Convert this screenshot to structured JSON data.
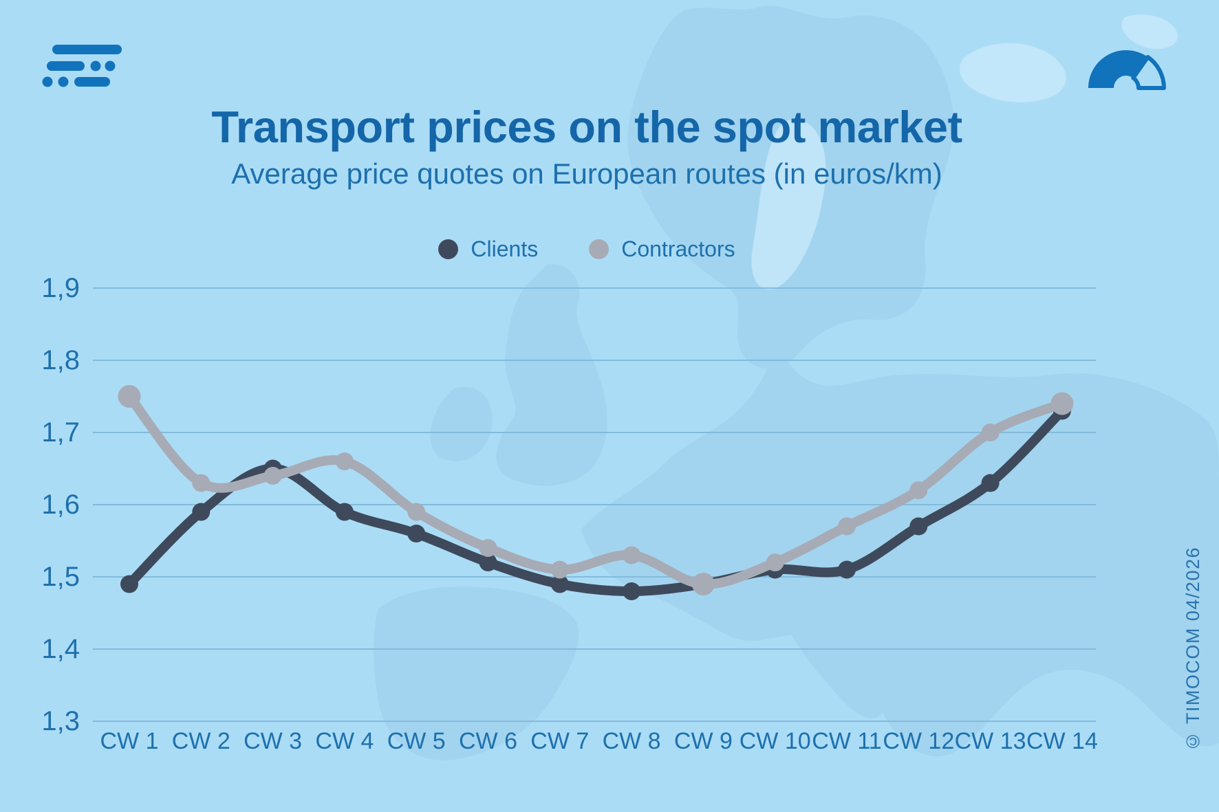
{
  "header": {
    "title": "Transport prices on the spot market",
    "subtitle": "Average price quotes on European routes (in euros/km)"
  },
  "legend": [
    {
      "label": "Clients",
      "color": "#3e4a5b"
    },
    {
      "label": "Contractors",
      "color": "#a7abb5"
    }
  ],
  "footer": {
    "copyright": "© TIMOCOM  04/2026"
  },
  "icons": {
    "top_left": "timocom-logo",
    "top_right": "speedometer-gauge-icon",
    "background": "europe-map-silhouette"
  },
  "colors": {
    "background": "#abdcf6",
    "map_land": "#97c9e4",
    "map_light": "#c9eafb",
    "grid": "#83badb",
    "axis_text": "#1d70ad",
    "title_text": "#1466a8",
    "brand_blue": "#1173bb",
    "clients": "#3e4a5b",
    "contractors": "#a7abb5"
  },
  "chart_data": {
    "type": "line",
    "title": "Transport prices on the spot market",
    "subtitle": "Average price quotes on European routes (in euros/km)",
    "xlabel": "",
    "ylabel": "",
    "unit": "euros/km",
    "categories": [
      "CW 1",
      "CW 2",
      "CW 3",
      "CW 4",
      "CW 5",
      "CW 6",
      "CW 7",
      "CW 8",
      "CW 9",
      "CW 10",
      "CW 11",
      "CW 12",
      "CW 13",
      "CW 14"
    ],
    "series": [
      {
        "name": "Clients",
        "color": "#3e4a5b",
        "values": [
          1.49,
          1.59,
          1.65,
          1.59,
          1.56,
          1.52,
          1.49,
          1.48,
          1.49,
          1.51,
          1.51,
          1.57,
          1.63,
          1.73
        ]
      },
      {
        "name": "Contractors",
        "color": "#a7abb5",
        "values": [
          1.75,
          1.63,
          1.64,
          1.66,
          1.59,
          1.54,
          1.51,
          1.53,
          1.49,
          1.52,
          1.57,
          1.62,
          1.7,
          1.74
        ],
        "emphasized_points": [
          "CW 1",
          "CW 9",
          "CW 14"
        ]
      }
    ],
    "ylim": [
      1.3,
      1.9
    ],
    "yticks": [
      1.9,
      1.8,
      1.7,
      1.6,
      1.5,
      1.4,
      1.3
    ],
    "ytick_labels": [
      "1,9",
      "1,8",
      "1,7",
      "1,6",
      "1,5",
      "1,4",
      "1,3"
    ],
    "grid": "horizontal",
    "legend_position": "top",
    "line_style": "smooth-with-markers"
  }
}
